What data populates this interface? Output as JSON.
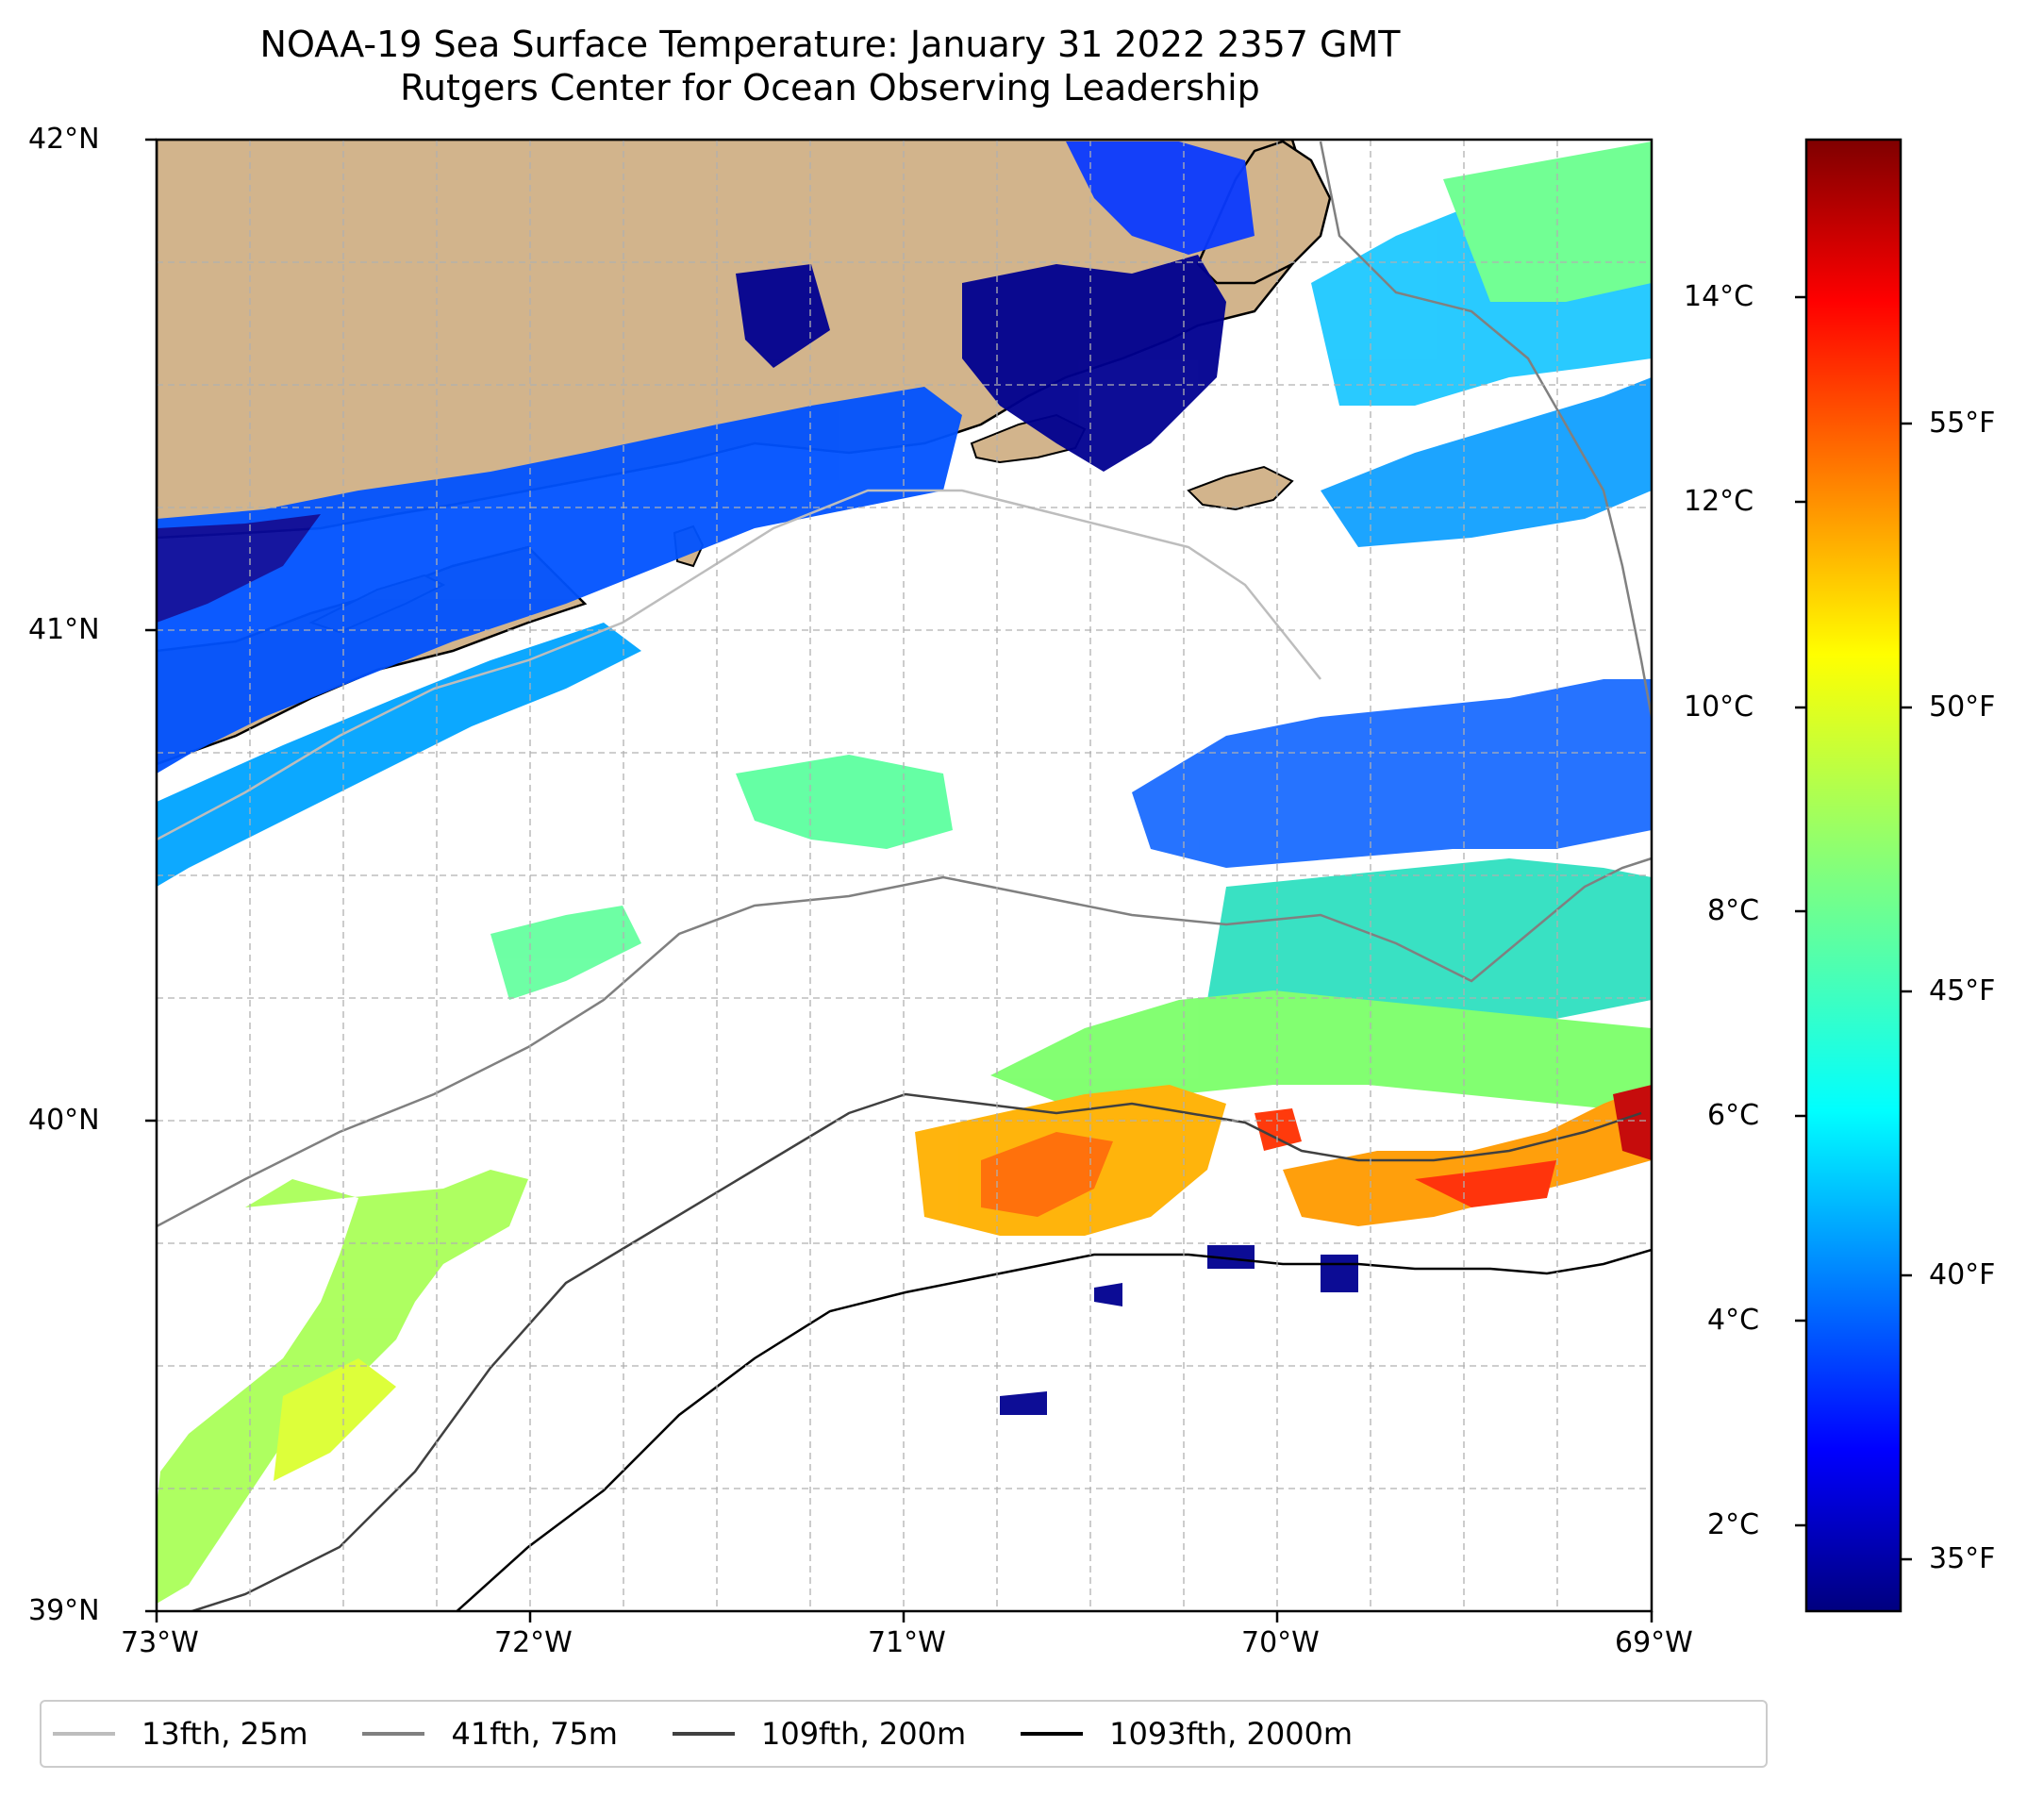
{
  "title": {
    "line1": "NOAA-19 Sea Surface Temperature: January 31 2022 2357 GMT",
    "line2": "Rutgers Center for Ocean Observing Leadership"
  },
  "axes": {
    "lon_ticks": [
      "73°W",
      "72°W",
      "71°W",
      "70°W",
      "69°W"
    ],
    "lat_ticks": [
      "42°N",
      "41°N",
      "40°N",
      "39°N"
    ]
  },
  "colorbar": {
    "colormap": "jet",
    "celsius_ticks": [
      "14°C",
      "12°C",
      "10°C",
      "8°C",
      "6°C",
      "4°C",
      "2°C"
    ],
    "fahrenheit_ticks": [
      "55°F",
      "50°F",
      "45°F",
      "40°F",
      "35°F"
    ],
    "range_c": [
      1.3,
      15.9
    ]
  },
  "legend": {
    "items": [
      {
        "label": "13fth, 25m",
        "color": "#bdbdbd"
      },
      {
        "label": "41fth, 75m",
        "color": "#808080"
      },
      {
        "label": "109fth, 200m",
        "color": "#404040"
      },
      {
        "label": "1093fth, 2000m",
        "color": "#000000"
      }
    ]
  },
  "colors": {
    "land": "#d2b48c",
    "coast": "#000000",
    "grid": "#b0b0b0"
  }
}
